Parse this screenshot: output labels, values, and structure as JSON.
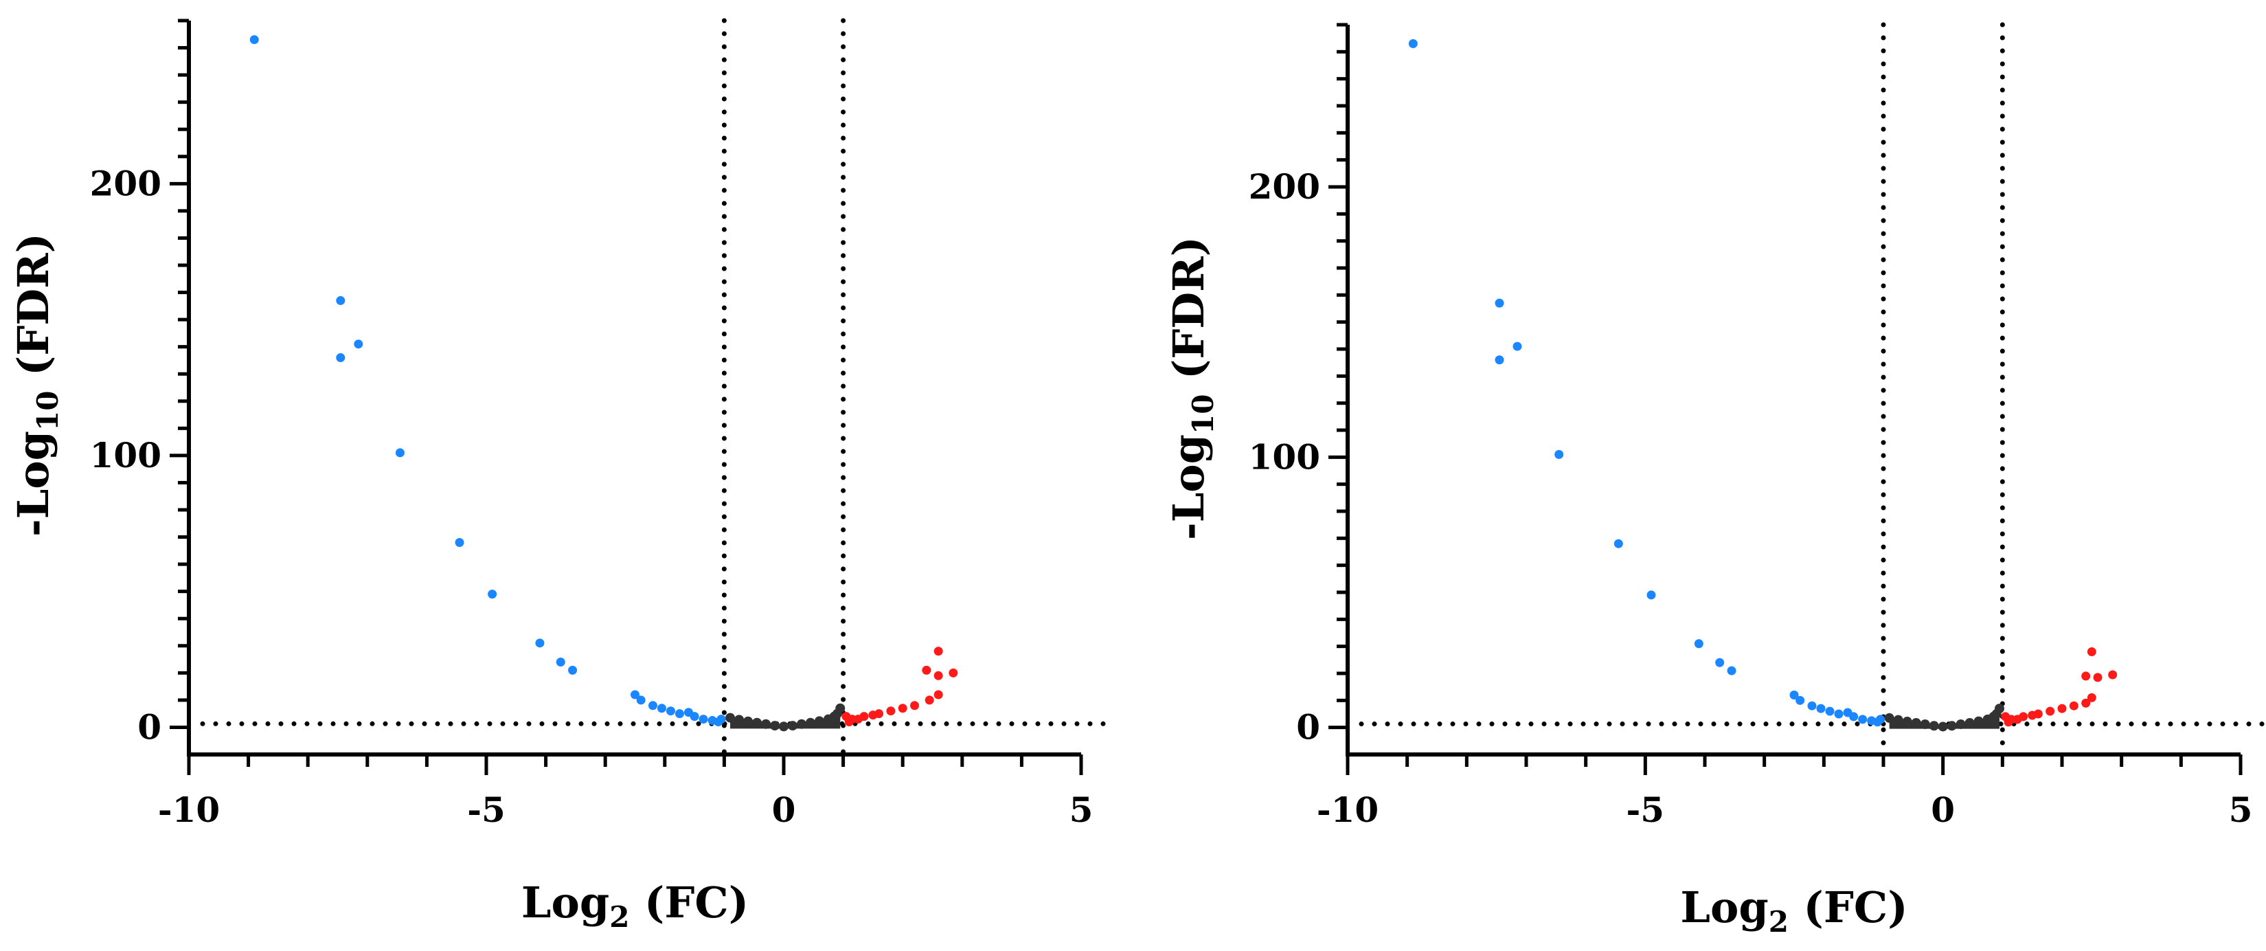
{
  "colors": {
    "up": "#ff1a1a",
    "down": "#1a86ff",
    "not_significant": "#333333",
    "axis": "#000000",
    "threshold_line": "#000000"
  },
  "chart_data": [
    {
      "type": "scatter",
      "xlabel_main": "Log",
      "xlabel_sub": "2",
      "xlabel_rest": " (FC)",
      "ylabel_main": "-Log",
      "ylabel_sub": "10",
      "ylabel_rest": " (FDR)",
      "xlim": [
        -10,
        5
      ],
      "ylim": [
        -10,
        260
      ],
      "xticks": [
        -10,
        -5,
        0,
        5
      ],
      "xtick_labels": [
        "-10",
        "-5",
        "0",
        "5"
      ],
      "yticks": [
        0,
        100,
        200
      ],
      "ytick_labels": [
        "0",
        "100",
        "200"
      ],
      "thresholds": {
        "x": [
          -1,
          1
        ],
        "y": 1.3
      },
      "grid": false,
      "series": [
        {
          "color": "down",
          "points": [
            [
              -8.9,
              253
            ],
            [
              -7.45,
              157
            ],
            [
              -7.45,
              136
            ],
            [
              -7.15,
              141
            ],
            [
              -6.45,
              101
            ],
            [
              -5.45,
              68
            ],
            [
              -4.9,
              49
            ],
            [
              -4.1,
              31
            ],
            [
              -3.75,
              24
            ],
            [
              -3.55,
              21
            ],
            [
              -2.5,
              12
            ],
            [
              -2.4,
              10
            ],
            [
              -2.2,
              8
            ],
            [
              -2.05,
              7
            ],
            [
              -1.9,
              6
            ],
            [
              -1.75,
              5
            ],
            [
              -1.6,
              5.5
            ],
            [
              -1.5,
              4
            ],
            [
              -1.35,
              3
            ],
            [
              -1.2,
              2.5
            ],
            [
              -1.1,
              2
            ],
            [
              -1.05,
              3
            ]
          ]
        },
        {
          "color": "up",
          "points": [
            [
              2.6,
              28
            ],
            [
              2.4,
              21
            ],
            [
              2.6,
              19
            ],
            [
              2.85,
              20
            ],
            [
              2.6,
              12
            ],
            [
              2.45,
              10
            ],
            [
              2.2,
              8
            ],
            [
              2.0,
              7
            ],
            [
              1.8,
              6
            ],
            [
              1.6,
              5
            ],
            [
              1.5,
              4.5
            ],
            [
              1.35,
              4
            ],
            [
              1.25,
              3
            ],
            [
              1.15,
              3
            ],
            [
              1.1,
              2
            ],
            [
              1.05,
              4
            ]
          ]
        },
        {
          "color": "not_significant",
          "points": [
            [
              -0.9,
              3.5
            ],
            [
              -0.75,
              2.8
            ],
            [
              -0.6,
              2.2
            ],
            [
              -0.45,
              1.7
            ],
            [
              -0.3,
              1.2
            ],
            [
              -0.15,
              0.6
            ],
            [
              0,
              0.3
            ],
            [
              0.15,
              0.6
            ],
            [
              0.3,
              1.2
            ],
            [
              0.45,
              1.7
            ],
            [
              0.6,
              2.3
            ],
            [
              0.75,
              3
            ],
            [
              0.85,
              4
            ],
            [
              0.9,
              5
            ],
            [
              0.95,
              7
            ]
          ]
        }
      ]
    },
    {
      "type": "scatter",
      "xlabel_main": "Log",
      "xlabel_sub": "2",
      "xlabel_rest": " (FC)",
      "ylabel_main": "-Log",
      "ylabel_sub": "10",
      "ylabel_rest": " (FDR)",
      "xlim": [
        -10,
        5
      ],
      "ylim": [
        -10,
        260
      ],
      "xticks": [
        -10,
        -5,
        0,
        5
      ],
      "xtick_labels": [
        "-10",
        "-5",
        "0",
        "5"
      ],
      "yticks": [
        0,
        100,
        200
      ],
      "ytick_labels": [
        "0",
        "100",
        "200"
      ],
      "thresholds": {
        "x": [
          -1,
          1
        ],
        "y": 1.3
      },
      "grid": false,
      "series": [
        {
          "color": "down",
          "points": [
            [
              -8.9,
              253
            ],
            [
              -7.45,
              157
            ],
            [
              -7.45,
              136
            ],
            [
              -7.15,
              141
            ],
            [
              -6.45,
              101
            ],
            [
              -5.45,
              68
            ],
            [
              -4.9,
              49
            ],
            [
              -4.1,
              31
            ],
            [
              -3.75,
              24
            ],
            [
              -3.55,
              21
            ],
            [
              -2.5,
              12
            ],
            [
              -2.4,
              10
            ],
            [
              -2.2,
              8
            ],
            [
              -2.05,
              7
            ],
            [
              -1.9,
              6
            ],
            [
              -1.75,
              5
            ],
            [
              -1.6,
              5.5
            ],
            [
              -1.5,
              4
            ],
            [
              -1.35,
              3
            ],
            [
              -1.2,
              2.5
            ],
            [
              -1.1,
              2
            ],
            [
              -1.05,
              3
            ]
          ]
        },
        {
          "color": "up",
          "points": [
            [
              2.5,
              28
            ],
            [
              2.4,
              19
            ],
            [
              2.6,
              18.5
            ],
            [
              2.85,
              19.5
            ],
            [
              2.5,
              11
            ],
            [
              2.4,
              9
            ],
            [
              2.2,
              8
            ],
            [
              2.0,
              7
            ],
            [
              1.8,
              6
            ],
            [
              1.6,
              5
            ],
            [
              1.5,
              4.5
            ],
            [
              1.35,
              4
            ],
            [
              1.25,
              3
            ],
            [
              1.15,
              3
            ],
            [
              1.1,
              2
            ],
            [
              1.05,
              4
            ]
          ]
        },
        {
          "color": "not_significant",
          "points": [
            [
              -0.9,
              3.5
            ],
            [
              -0.75,
              2.8
            ],
            [
              -0.6,
              2.2
            ],
            [
              -0.45,
              1.7
            ],
            [
              -0.3,
              1.2
            ],
            [
              -0.15,
              0.6
            ],
            [
              0,
              0.3
            ],
            [
              0.15,
              0.6
            ],
            [
              0.3,
              1.2
            ],
            [
              0.45,
              1.7
            ],
            [
              0.6,
              2.3
            ],
            [
              0.75,
              3
            ],
            [
              0.85,
              4
            ],
            [
              0.9,
              5
            ],
            [
              0.95,
              7
            ]
          ]
        }
      ]
    }
  ]
}
